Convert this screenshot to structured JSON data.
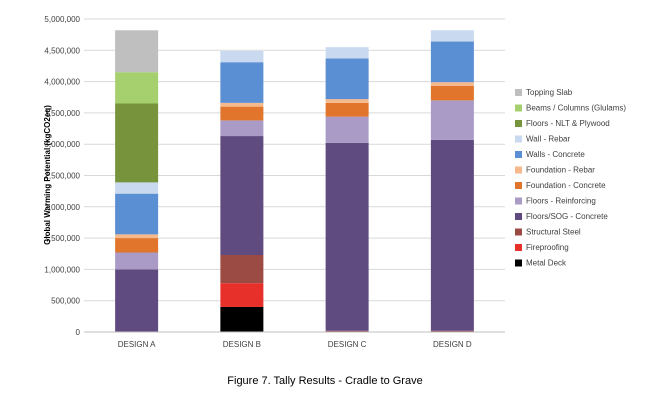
{
  "chart_data": {
    "type": "bar",
    "stacked": true,
    "title": "",
    "xlabel": "",
    "ylabel": "Global Warming Potential (kgCO2eq)",
    "ylim": [
      0,
      5000000
    ],
    "yticks": [
      0,
      500000,
      1000000,
      1500000,
      2000000,
      2500000,
      3000000,
      3500000,
      4000000,
      4500000,
      5000000
    ],
    "ytick_labels": [
      "0",
      "500,000",
      "1,000,000",
      "1,500,000",
      "2,000,000",
      "2,500,000",
      "3,000,000",
      "3,500,000",
      "4,000,000",
      "4,500,000",
      "5,000,000"
    ],
    "grid": true,
    "legend_position": "right",
    "categories": [
      "DESIGN A",
      "DESIGN B",
      "DESIGN C",
      "DESIGN D"
    ],
    "series": [
      {
        "name": "Metal Deck",
        "color": "#000000",
        "values": [
          0,
          400000,
          0,
          0
        ]
      },
      {
        "name": "Fireproofing",
        "color": "#e8302a",
        "values": [
          0,
          380000,
          0,
          0
        ]
      },
      {
        "name": "Structural Steel",
        "color": "#9c4a44",
        "values": [
          0,
          450000,
          20000,
          20000
        ]
      },
      {
        "name": "Floors/SOG - Concrete",
        "color": "#5f4b80",
        "values": [
          1000000,
          1900000,
          3000000,
          3050000
        ]
      },
      {
        "name": "Floors - Reinforcing",
        "color": "#a99bc6",
        "values": [
          270000,
          250000,
          420000,
          630000
        ]
      },
      {
        "name": "Foundation - Concrete",
        "color": "#e0752b",
        "values": [
          230000,
          220000,
          220000,
          230000
        ]
      },
      {
        "name": "Foundation - Rebar",
        "color": "#f5b98c",
        "values": [
          60000,
          60000,
          60000,
          60000
        ]
      },
      {
        "name": "Walls - Concrete",
        "color": "#5b8fd3",
        "values": [
          650000,
          650000,
          650000,
          650000
        ]
      },
      {
        "name": "Wall - Rebar",
        "color": "#c8d9f0",
        "values": [
          180000,
          180000,
          180000,
          180000
        ]
      },
      {
        "name": "Floors - NLT & Plywood",
        "color": "#77933c",
        "values": [
          1260000,
          0,
          0,
          0
        ]
      },
      {
        "name": "Beams / Columns (Glulams)",
        "color": "#a6d06d",
        "values": [
          500000,
          0,
          0,
          0
        ]
      },
      {
        "name": "Topping Slab",
        "color": "#bfbfbf",
        "values": [
          670000,
          0,
          0,
          0
        ]
      }
    ]
  },
  "caption": "Figure 7. Tally Results - Cradle to Grave"
}
